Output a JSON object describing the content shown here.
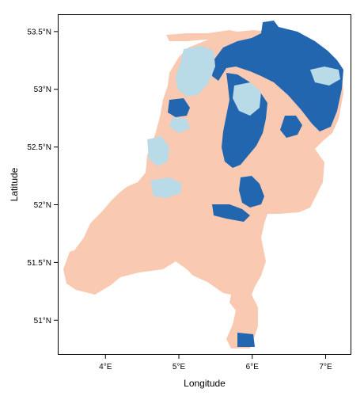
{
  "map": {
    "xlabel": "Longitude",
    "ylabel": "Latitude",
    "x_ticks": [
      {
        "value": 4,
        "label": "4°E"
      },
      {
        "value": 5,
        "label": "5°E"
      },
      {
        "value": 6,
        "label": "6°E"
      },
      {
        "value": 7,
        "label": "7°E"
      }
    ],
    "y_ticks": [
      {
        "value": 51,
        "label": "51°N"
      },
      {
        "value": 51.5,
        "label": "51.5°N"
      },
      {
        "value": 52,
        "label": "52°N"
      },
      {
        "value": 52.5,
        "label": "52.5°N"
      },
      {
        "value": 53,
        "label": "53°N"
      },
      {
        "value": 53.5,
        "label": "53.5°N"
      }
    ],
    "xlim": [
      3.35,
      7.35
    ],
    "ylim": [
      50.7,
      53.65
    ],
    "colors": {
      "land": "#f9c9b1",
      "water_dark": "#2266b0",
      "water_light": "#b9dbe8",
      "frame": "#000000",
      "background": "#ffffff"
    },
    "classes": [
      "land",
      "water_dark",
      "water_light"
    ]
  }
}
